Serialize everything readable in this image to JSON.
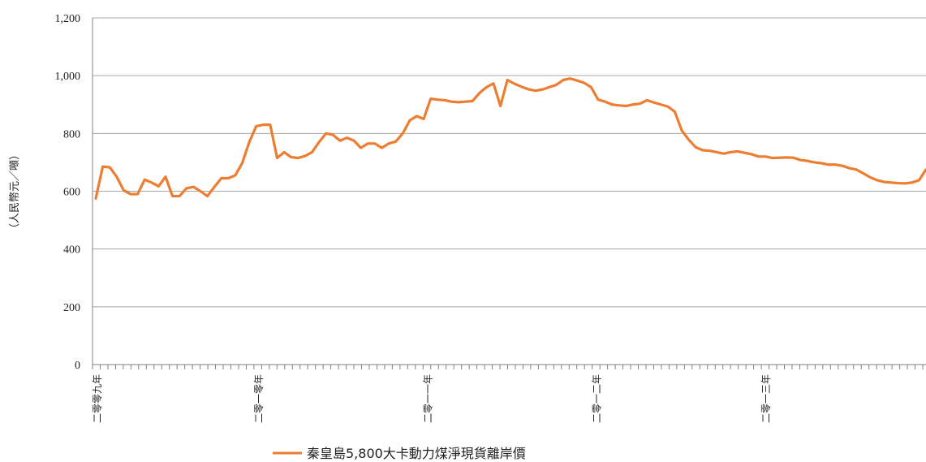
{
  "chart_data": {
    "type": "line",
    "ylabel": "（人民幣元／噸）",
    "ylim": [
      0,
      1200
    ],
    "y_ticks": [
      "0",
      "200",
      "400",
      "600",
      "800",
      "1,000",
      "1,200"
    ],
    "y_tick_values": [
      0,
      200,
      400,
      600,
      800,
      1000,
      1200
    ],
    "x_tick_labels": [
      "二零零九年",
      "二零一零年",
      "二零一一年",
      "二零一二年",
      "二零一三年"
    ],
    "x_label_indices": [
      0,
      21,
      43,
      65,
      87
    ],
    "n_weekly_ticks": 108,
    "grid": true,
    "legend_position": "bottom",
    "series": [
      {
        "name": "秦皇島5,800大卡動力煤淨現貨離岸價",
        "color": "#ED7D31",
        "values": [
          575,
          685,
          683,
          650,
          603,
          590,
          590,
          640,
          630,
          617,
          650,
          583,
          583,
          610,
          615,
          600,
          583,
          615,
          645,
          645,
          655,
          698,
          770,
          825,
          830,
          830,
          715,
          735,
          718,
          715,
          722,
          735,
          770,
          800,
          795,
          775,
          785,
          775,
          750,
          765,
          765,
          750,
          765,
          772,
          800,
          845,
          860,
          850,
          920,
          917,
          915,
          910,
          908,
          910,
          912,
          940,
          960,
          973,
          895,
          985,
          972,
          962,
          953,
          948,
          952,
          960,
          968,
          985,
          990,
          983,
          975,
          960,
          917,
          910,
          900,
          897,
          895,
          900,
          903,
          915,
          907,
          900,
          893,
          875,
          810,
          778,
          752,
          742,
          740,
          735,
          730,
          735,
          738,
          733,
          728,
          720,
          720,
          715,
          716,
          717,
          716,
          708,
          705,
          700,
          697,
          692,
          692,
          688,
          680,
          675,
          662,
          648,
          638,
          632,
          630,
          628,
          627,
          630,
          638,
          675
        ]
      }
    ]
  }
}
